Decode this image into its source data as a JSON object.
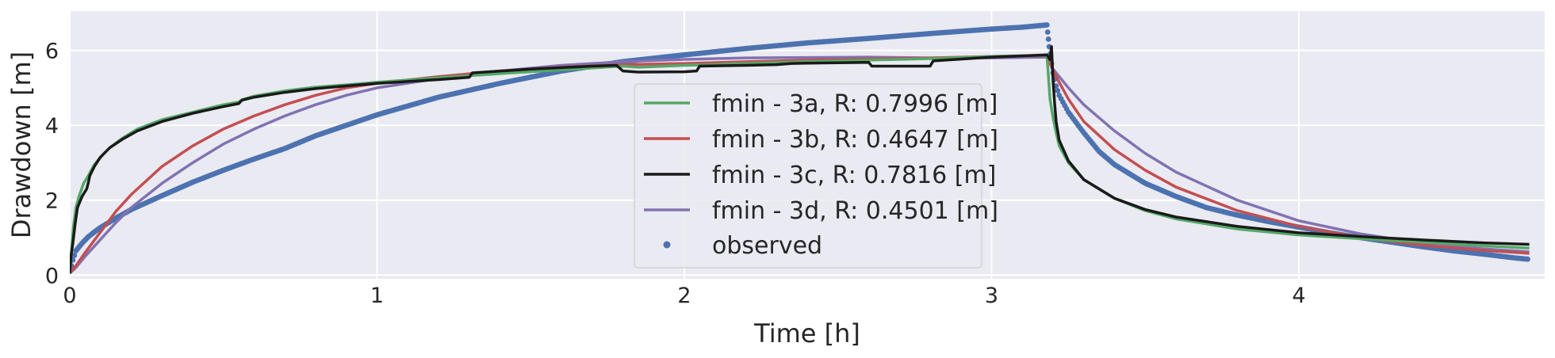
{
  "chart_data": {
    "type": "line",
    "title": "",
    "xlabel": "Time [h]",
    "ylabel": "Drawdown [m]",
    "xlim": [
      0,
      4.8
    ],
    "ylim": [
      -0.1,
      7.05
    ],
    "xticks": [
      0,
      1,
      2,
      3,
      4
    ],
    "yticks": [
      0,
      2,
      4,
      6
    ],
    "grid": true,
    "legend_position": "center",
    "colors": {
      "background": "#eaeaf2",
      "grid": "#ffffff",
      "text": "#262626"
    },
    "series": [
      {
        "name": "fmin - 3a, R: 0.7996 [m]",
        "style": "line",
        "color": "#55a868",
        "x": [
          0,
          0.005,
          0.012,
          0.02,
          0.03,
          0.045,
          0.06,
          0.07,
          0.08,
          0.1,
          0.13,
          0.17,
          0.22,
          0.3,
          0.4,
          0.5,
          0.55,
          0.56,
          0.6,
          0.7,
          0.8,
          0.9,
          1.0,
          1.2,
          1.4,
          1.6,
          1.8,
          1.85,
          2.0,
          2.2,
          2.4,
          2.6,
          2.8,
          3.0,
          3.18,
          3.185,
          3.19,
          3.2,
          3.21,
          3.22,
          3.25,
          3.3,
          3.4,
          3.5,
          3.6,
          3.8,
          4.0,
          4.2,
          4.4,
          4.6,
          4.75
        ],
        "y": [
          0.05,
          0.6,
          1.3,
          1.8,
          2.1,
          2.45,
          2.65,
          2.8,
          2.95,
          3.15,
          3.4,
          3.65,
          3.9,
          4.15,
          4.35,
          4.55,
          4.62,
          4.68,
          4.78,
          4.92,
          5.02,
          5.08,
          5.15,
          5.27,
          5.38,
          5.48,
          5.58,
          5.55,
          5.6,
          5.65,
          5.7,
          5.74,
          5.78,
          5.84,
          5.87,
          5.3,
          4.7,
          4.2,
          3.8,
          3.45,
          3.0,
          2.55,
          2.05,
          1.72,
          1.5,
          1.23,
          1.07,
          0.97,
          0.88,
          0.78,
          0.72
        ]
      },
      {
        "name": "fmin - 3b, R: 0.4647 [m]",
        "style": "line",
        "color": "#c44e52",
        "x": [
          0,
          0.02,
          0.05,
          0.1,
          0.15,
          0.2,
          0.3,
          0.4,
          0.5,
          0.6,
          0.7,
          0.8,
          0.9,
          1.0,
          1.2,
          1.4,
          1.6,
          1.8,
          2.0,
          2.2,
          2.4,
          2.6,
          2.8,
          3.0,
          3.18,
          3.2,
          3.25,
          3.3,
          3.4,
          3.5,
          3.6,
          3.8,
          4.0,
          4.2,
          4.4,
          4.6,
          4.75
        ],
        "y": [
          0.05,
          0.25,
          0.6,
          1.15,
          1.7,
          2.15,
          2.9,
          3.45,
          3.9,
          4.25,
          4.55,
          4.8,
          5.0,
          5.12,
          5.3,
          5.45,
          5.55,
          5.62,
          5.65,
          5.7,
          5.74,
          5.77,
          5.8,
          5.84,
          5.86,
          5.45,
          4.7,
          4.1,
          3.35,
          2.8,
          2.35,
          1.72,
          1.3,
          1.0,
          0.8,
          0.66,
          0.58
        ]
      },
      {
        "name": "fmin - 3c, R: 0.7816 [m]",
        "style": "line",
        "color": "#1a1a1a",
        "x": [
          0,
          0.004,
          0.01,
          0.018,
          0.025,
          0.04,
          0.055,
          0.06,
          0.065,
          0.08,
          0.1,
          0.13,
          0.17,
          0.22,
          0.3,
          0.4,
          0.5,
          0.55,
          0.56,
          0.6,
          0.7,
          0.8,
          0.9,
          1.0,
          1.2,
          1.3,
          1.31,
          1.5,
          1.7,
          1.78,
          1.8,
          1.85,
          2.0,
          2.04,
          2.05,
          2.2,
          2.3,
          2.35,
          2.4,
          2.6,
          2.61,
          2.8,
          2.81,
          3.0,
          3.18,
          3.19,
          3.195,
          3.2,
          3.205,
          3.21,
          3.22,
          3.25,
          3.3,
          3.4,
          3.5,
          3.6,
          3.8,
          4.0,
          4.2,
          4.4,
          4.6,
          4.75
        ],
        "y": [
          0.05,
          0.5,
          0.85,
          1.4,
          1.8,
          2.1,
          2.3,
          2.45,
          2.65,
          2.9,
          3.15,
          3.4,
          3.62,
          3.85,
          4.1,
          4.32,
          4.5,
          4.58,
          4.67,
          4.75,
          4.88,
          4.98,
          5.05,
          5.12,
          5.22,
          5.28,
          5.4,
          5.5,
          5.58,
          5.6,
          5.45,
          5.42,
          5.43,
          5.45,
          5.58,
          5.6,
          5.62,
          5.65,
          5.66,
          5.68,
          5.58,
          5.58,
          5.72,
          5.82,
          5.88,
          5.75,
          6.1,
          5.2,
          4.6,
          4.1,
          3.6,
          3.05,
          2.55,
          2.05,
          1.75,
          1.55,
          1.3,
          1.13,
          1.03,
          0.94,
          0.86,
          0.82
        ]
      },
      {
        "name": "fmin - 3d, R: 0.4501 [m]",
        "style": "line",
        "color": "#8172b2",
        "x": [
          0,
          0.02,
          0.05,
          0.1,
          0.15,
          0.2,
          0.3,
          0.4,
          0.5,
          0.6,
          0.7,
          0.8,
          0.9,
          1.0,
          1.2,
          1.4,
          1.6,
          1.8,
          2.0,
          2.2,
          2.4,
          2.6,
          2.8,
          3.0,
          3.18,
          3.2,
          3.25,
          3.3,
          3.4,
          3.5,
          3.6,
          3.8,
          4.0,
          4.2,
          4.4,
          4.6,
          4.75
        ],
        "y": [
          0.05,
          0.2,
          0.5,
          0.95,
          1.4,
          1.8,
          2.45,
          3.0,
          3.5,
          3.9,
          4.25,
          4.55,
          4.8,
          5.0,
          5.25,
          5.45,
          5.6,
          5.7,
          5.76,
          5.8,
          5.81,
          5.82,
          5.8,
          5.8,
          5.82,
          5.5,
          5.0,
          4.55,
          3.85,
          3.25,
          2.75,
          2.0,
          1.45,
          1.1,
          0.85,
          0.7,
          0.62
        ]
      },
      {
        "name": "observed",
        "style": "dots",
        "color": "#4c72b0",
        "x": [
          0,
          0.01,
          0.02,
          0.04,
          0.06,
          0.08,
          0.1,
          0.15,
          0.2,
          0.3,
          0.4,
          0.5,
          0.6,
          0.7,
          0.8,
          0.9,
          1.0,
          1.2,
          1.4,
          1.6,
          1.8,
          2.0,
          2.2,
          2.4,
          2.6,
          2.8,
          3.0,
          3.1,
          3.18,
          3.185,
          3.19,
          3.2,
          3.21,
          3.22,
          3.25,
          3.3,
          3.35,
          3.4,
          3.5,
          3.6,
          3.7,
          3.8,
          3.9,
          4.0,
          4.1,
          4.2,
          4.3,
          4.4,
          4.5,
          4.6,
          4.7,
          4.75
        ],
        "y": [
          0.1,
          0.4,
          0.65,
          0.85,
          1.02,
          1.15,
          1.27,
          1.52,
          1.75,
          2.12,
          2.48,
          2.8,
          3.1,
          3.38,
          3.72,
          4.0,
          4.28,
          4.75,
          5.12,
          5.45,
          5.7,
          5.88,
          6.05,
          6.2,
          6.32,
          6.45,
          6.57,
          6.62,
          6.68,
          6.3,
          5.9,
          5.4,
          5.05,
          4.8,
          4.35,
          3.8,
          3.3,
          2.95,
          2.45,
          2.1,
          1.8,
          1.6,
          1.43,
          1.28,
          1.13,
          1.0,
          0.88,
          0.76,
          0.65,
          0.56,
          0.46,
          0.42
        ]
      }
    ]
  }
}
